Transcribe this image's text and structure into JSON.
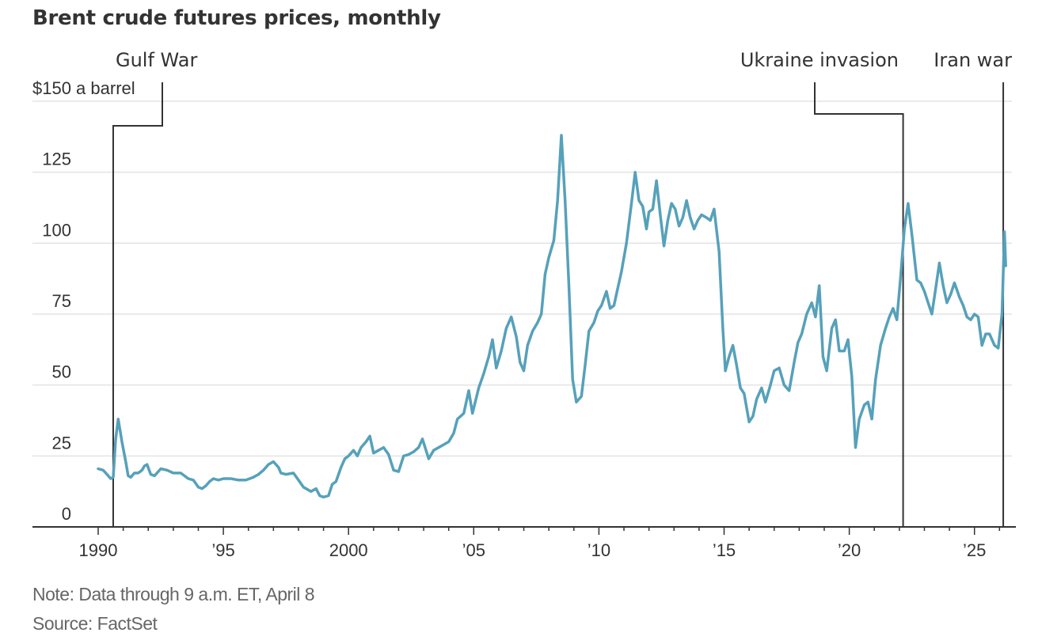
{
  "title": "Brent crude futures prices, monthly",
  "note": "Note: Data through 9 a.m. ET, April 8",
  "source": "Source: FactSet",
  "colors": {
    "line": "#56a1ba",
    "grid": "#e3e3e3",
    "axis": "#333333",
    "annotation": "#333333"
  },
  "chart_data": {
    "type": "line",
    "title": "Brent crude futures prices, monthly",
    "xlabel": "",
    "ylabel": "$150 a barrel",
    "ylim": [
      0,
      150
    ],
    "xlim": [
      1989.0,
      2026.5
    ],
    "grid": true,
    "yticks": [
      0,
      25,
      50,
      75,
      100,
      125,
      150
    ],
    "ytick_labels": [
      "0",
      "25",
      "50",
      "75",
      "100",
      "125",
      "$150 a barrel"
    ],
    "xticks": [
      1990,
      1995,
      2000,
      2005,
      2010,
      2015,
      2020,
      2025
    ],
    "xtick_labels": [
      "1990",
      "’95",
      "2000",
      "’05",
      "’10",
      "’15",
      "’20",
      "’25"
    ],
    "annotations": [
      {
        "label": "Gulf War",
        "x": 1990.6
      },
      {
        "label": "Ukraine invasion",
        "x": 2022.15
      },
      {
        "label": "Iran war",
        "x": 2026.15
      }
    ],
    "series": [
      {
        "name": "Brent crude",
        "points": [
          [
            1990.0,
            20.5
          ],
          [
            1990.2,
            20
          ],
          [
            1990.35,
            18.5
          ],
          [
            1990.5,
            17
          ],
          [
            1990.6,
            17.5
          ],
          [
            1990.7,
            31
          ],
          [
            1990.8,
            38
          ],
          [
            1990.95,
            30
          ],
          [
            1991.1,
            23
          ],
          [
            1991.2,
            18
          ],
          [
            1991.3,
            17.5
          ],
          [
            1991.45,
            19
          ],
          [
            1991.6,
            19
          ],
          [
            1991.75,
            20
          ],
          [
            1991.85,
            21.5
          ],
          [
            1991.95,
            22
          ],
          [
            1992.1,
            18.5
          ],
          [
            1992.25,
            18
          ],
          [
            1992.5,
            20.5
          ],
          [
            1992.75,
            20
          ],
          [
            1993.0,
            19
          ],
          [
            1993.3,
            19
          ],
          [
            1993.6,
            17
          ],
          [
            1993.8,
            16.5
          ],
          [
            1994.0,
            14
          ],
          [
            1994.15,
            13.5
          ],
          [
            1994.3,
            14.5
          ],
          [
            1994.45,
            16
          ],
          [
            1994.6,
            17
          ],
          [
            1994.8,
            16.5
          ],
          [
            1995.0,
            17
          ],
          [
            1995.3,
            17
          ],
          [
            1995.6,
            16.5
          ],
          [
            1995.9,
            16.5
          ],
          [
            1996.2,
            17.5
          ],
          [
            1996.4,
            18.5
          ],
          [
            1996.6,
            20
          ],
          [
            1996.8,
            22
          ],
          [
            1997.0,
            23
          ],
          [
            1997.2,
            21
          ],
          [
            1997.3,
            19
          ],
          [
            1997.5,
            18.5
          ],
          [
            1997.8,
            19
          ],
          [
            1998.0,
            16.5
          ],
          [
            1998.2,
            14
          ],
          [
            1998.5,
            12.5
          ],
          [
            1998.7,
            13.5
          ],
          [
            1998.85,
            11
          ],
          [
            1999.0,
            10.5
          ],
          [
            1999.2,
            11
          ],
          [
            1999.35,
            15
          ],
          [
            1999.5,
            16
          ],
          [
            1999.7,
            21
          ],
          [
            1999.85,
            24
          ],
          [
            2000.0,
            25
          ],
          [
            2000.2,
            27
          ],
          [
            2000.35,
            25
          ],
          [
            2000.5,
            28
          ],
          [
            2000.7,
            30
          ],
          [
            2000.85,
            32
          ],
          [
            2001.0,
            26
          ],
          [
            2001.2,
            27
          ],
          [
            2001.4,
            28
          ],
          [
            2001.6,
            25.5
          ],
          [
            2001.8,
            20
          ],
          [
            2002.0,
            19.5
          ],
          [
            2002.2,
            25
          ],
          [
            2002.4,
            25.5
          ],
          [
            2002.6,
            26.5
          ],
          [
            2002.8,
            28
          ],
          [
            2002.95,
            31
          ],
          [
            2003.2,
            24
          ],
          [
            2003.4,
            27
          ],
          [
            2003.6,
            28
          ],
          [
            2003.8,
            29
          ],
          [
            2004.0,
            30
          ],
          [
            2004.2,
            33
          ],
          [
            2004.35,
            38
          ],
          [
            2004.6,
            40
          ],
          [
            2004.8,
            48
          ],
          [
            2004.95,
            40
          ],
          [
            2005.2,
            49
          ],
          [
            2005.4,
            54
          ],
          [
            2005.6,
            60
          ],
          [
            2005.75,
            66
          ],
          [
            2005.9,
            56
          ],
          [
            2006.1,
            62
          ],
          [
            2006.3,
            70
          ],
          [
            2006.5,
            74
          ],
          [
            2006.7,
            67
          ],
          [
            2006.85,
            58
          ],
          [
            2007.0,
            55
          ],
          [
            2007.15,
            64
          ],
          [
            2007.35,
            69
          ],
          [
            2007.55,
            72
          ],
          [
            2007.7,
            75
          ],
          [
            2007.85,
            89
          ],
          [
            2008.0,
            95
          ],
          [
            2008.2,
            101
          ],
          [
            2008.35,
            115
          ],
          [
            2008.5,
            138
          ],
          [
            2008.65,
            115
          ],
          [
            2008.8,
            85
          ],
          [
            2008.95,
            52
          ],
          [
            2009.1,
            44
          ],
          [
            2009.3,
            46
          ],
          [
            2009.45,
            57
          ],
          [
            2009.6,
            69
          ],
          [
            2009.8,
            72
          ],
          [
            2009.95,
            76
          ],
          [
            2010.1,
            78
          ],
          [
            2010.3,
            83
          ],
          [
            2010.45,
            77
          ],
          [
            2010.6,
            78
          ],
          [
            2010.75,
            84
          ],
          [
            2010.9,
            90
          ],
          [
            2011.1,
            100
          ],
          [
            2011.3,
            114
          ],
          [
            2011.45,
            125
          ],
          [
            2011.6,
            115
          ],
          [
            2011.75,
            113
          ],
          [
            2011.9,
            105
          ],
          [
            2012.0,
            111
          ],
          [
            2012.15,
            112
          ],
          [
            2012.3,
            122
          ],
          [
            2012.45,
            110
          ],
          [
            2012.6,
            99
          ],
          [
            2012.75,
            108
          ],
          [
            2012.9,
            114
          ],
          [
            2013.05,
            112
          ],
          [
            2013.2,
            106
          ],
          [
            2013.35,
            109
          ],
          [
            2013.5,
            115
          ],
          [
            2013.65,
            109
          ],
          [
            2013.8,
            105
          ],
          [
            2013.95,
            108
          ],
          [
            2014.1,
            110
          ],
          [
            2014.3,
            109
          ],
          [
            2014.45,
            108
          ],
          [
            2014.6,
            112
          ],
          [
            2014.8,
            97
          ],
          [
            2014.95,
            70
          ],
          [
            2015.05,
            55
          ],
          [
            2015.2,
            60
          ],
          [
            2015.35,
            64
          ],
          [
            2015.5,
            57
          ],
          [
            2015.65,
            49
          ],
          [
            2015.8,
            47
          ],
          [
            2016.0,
            37
          ],
          [
            2016.15,
            39
          ],
          [
            2016.3,
            45
          ],
          [
            2016.5,
            49
          ],
          [
            2016.65,
            44
          ],
          [
            2016.85,
            50
          ],
          [
            2017.0,
            55
          ],
          [
            2017.2,
            56
          ],
          [
            2017.4,
            50
          ],
          [
            2017.6,
            48
          ],
          [
            2017.8,
            58
          ],
          [
            2017.95,
            65
          ],
          [
            2018.1,
            68
          ],
          [
            2018.3,
            75
          ],
          [
            2018.5,
            79
          ],
          [
            2018.65,
            74
          ],
          [
            2018.8,
            85
          ],
          [
            2018.95,
            60
          ],
          [
            2019.1,
            55
          ],
          [
            2019.3,
            70
          ],
          [
            2019.45,
            73
          ],
          [
            2019.6,
            62
          ],
          [
            2019.8,
            62
          ],
          [
            2019.95,
            66
          ],
          [
            2020.1,
            53
          ],
          [
            2020.25,
            28
          ],
          [
            2020.4,
            38
          ],
          [
            2020.6,
            43
          ],
          [
            2020.75,
            44
          ],
          [
            2020.9,
            38
          ],
          [
            2021.05,
            52
          ],
          [
            2021.25,
            64
          ],
          [
            2021.45,
            70
          ],
          [
            2021.6,
            74
          ],
          [
            2021.75,
            77
          ],
          [
            2021.9,
            73
          ],
          [
            2022.05,
            88
          ],
          [
            2022.2,
            105
          ],
          [
            2022.35,
            114
          ],
          [
            2022.5,
            103
          ],
          [
            2022.7,
            87
          ],
          [
            2022.85,
            86
          ],
          [
            2023.0,
            83
          ],
          [
            2023.15,
            79
          ],
          [
            2023.3,
            75
          ],
          [
            2023.45,
            84
          ],
          [
            2023.6,
            93
          ],
          [
            2023.75,
            85
          ],
          [
            2023.9,
            79
          ],
          [
            2024.05,
            82
          ],
          [
            2024.2,
            86
          ],
          [
            2024.4,
            81
          ],
          [
            2024.55,
            78
          ],
          [
            2024.7,
            74
          ],
          [
            2024.85,
            73
          ],
          [
            2025.0,
            75
          ],
          [
            2025.15,
            74
          ],
          [
            2025.3,
            64
          ],
          [
            2025.45,
            68
          ],
          [
            2025.6,
            68
          ],
          [
            2025.8,
            64
          ],
          [
            2025.95,
            63
          ],
          [
            2026.1,
            75
          ],
          [
            2026.2,
            104
          ],
          [
            2026.25,
            92
          ]
        ]
      }
    ]
  }
}
